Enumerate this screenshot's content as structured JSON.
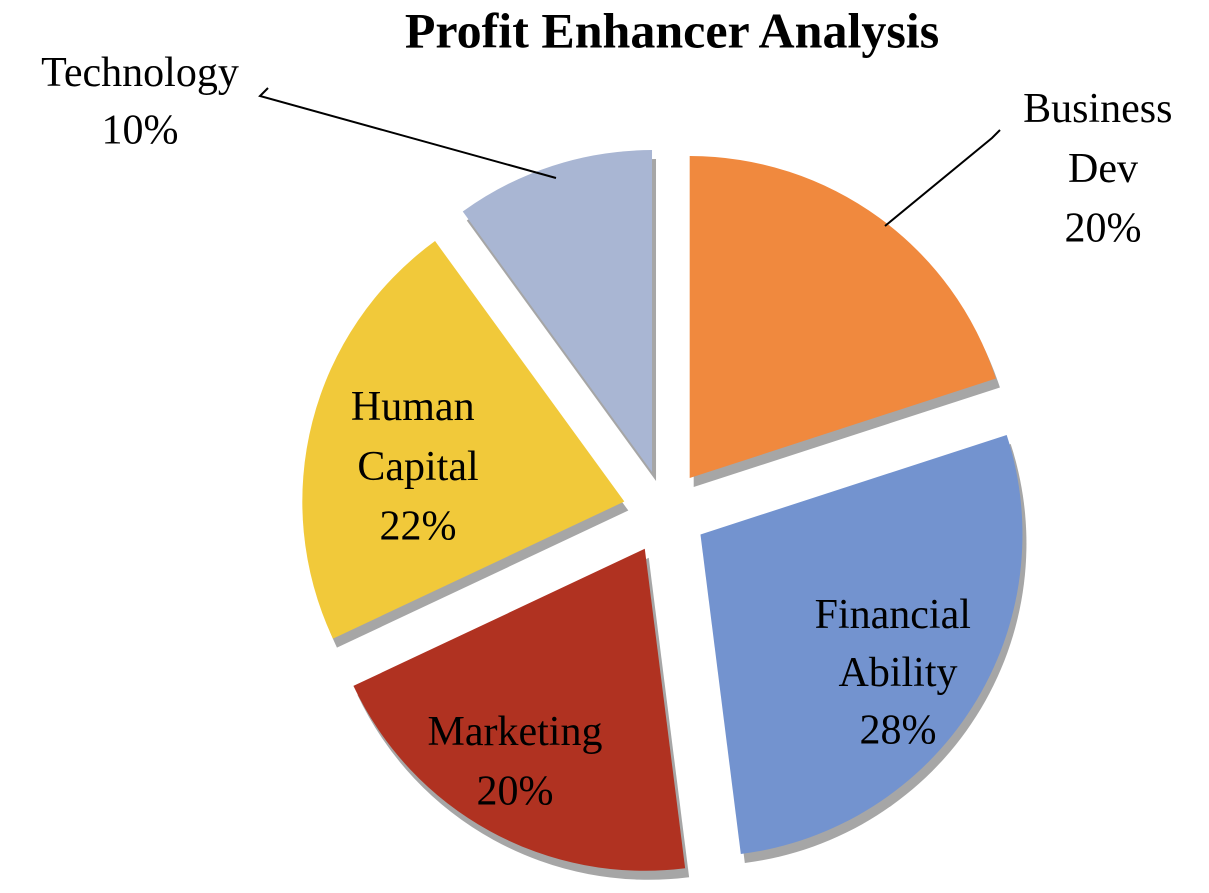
{
  "chart_data": {
    "type": "pie",
    "title": "Profit Enhancer Analysis",
    "categories": [
      "Business Dev",
      "Financial Ability",
      "Marketing",
      "Human Capital",
      "Technology"
    ],
    "values": [
      20,
      28,
      20,
      22,
      10
    ],
    "value_labels": [
      "20%",
      "28%",
      "20%",
      "22%",
      "10%"
    ],
    "colors": [
      "#f0893e",
      "#7393cf",
      "#b03221",
      "#f1c93a",
      "#a9b6d3"
    ]
  }
}
